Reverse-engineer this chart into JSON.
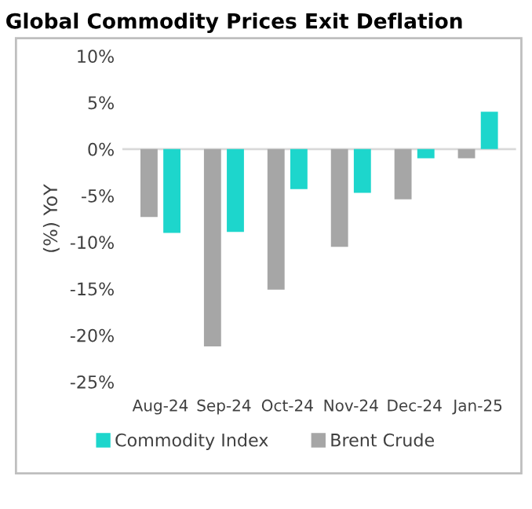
{
  "chart_data": {
    "type": "bar",
    "title": "Global Commodity Prices Exit Deflation",
    "ylabel": "(%) YoY",
    "categories": [
      "Aug-24",
      "Sep-24",
      "Oct-24",
      "Nov-24",
      "Dec-24",
      "Jan-25"
    ],
    "series": [
      {
        "name": "Brent Crude",
        "color": "#a6a6a6",
        "values": [
          -7.3,
          -21.2,
          -15.1,
          -10.5,
          -5.4,
          -1.0
        ]
      },
      {
        "name": "Commodity Index",
        "color": "#1dd6cc",
        "values": [
          -9.0,
          -8.9,
          -4.3,
          -4.7,
          -1.0,
          4.0
        ]
      }
    ],
    "ylim": [
      -25,
      10
    ],
    "yticks": [
      {
        "value": 10,
        "label": "10%"
      },
      {
        "value": 5,
        "label": "5%"
      },
      {
        "value": 0,
        "label": "0%"
      },
      {
        "value": -5,
        "label": "-5%"
      },
      {
        "value": -10,
        "label": "-10%"
      },
      {
        "value": -15,
        "label": "-15%"
      },
      {
        "value": -20,
        "label": "-20%"
      },
      {
        "value": -25,
        "label": "-25%"
      }
    ],
    "ref_lines": [
      {
        "axis": "y",
        "value": 0,
        "color": "#d9d9d9"
      }
    ],
    "grid": false,
    "legend": "bottom"
  }
}
